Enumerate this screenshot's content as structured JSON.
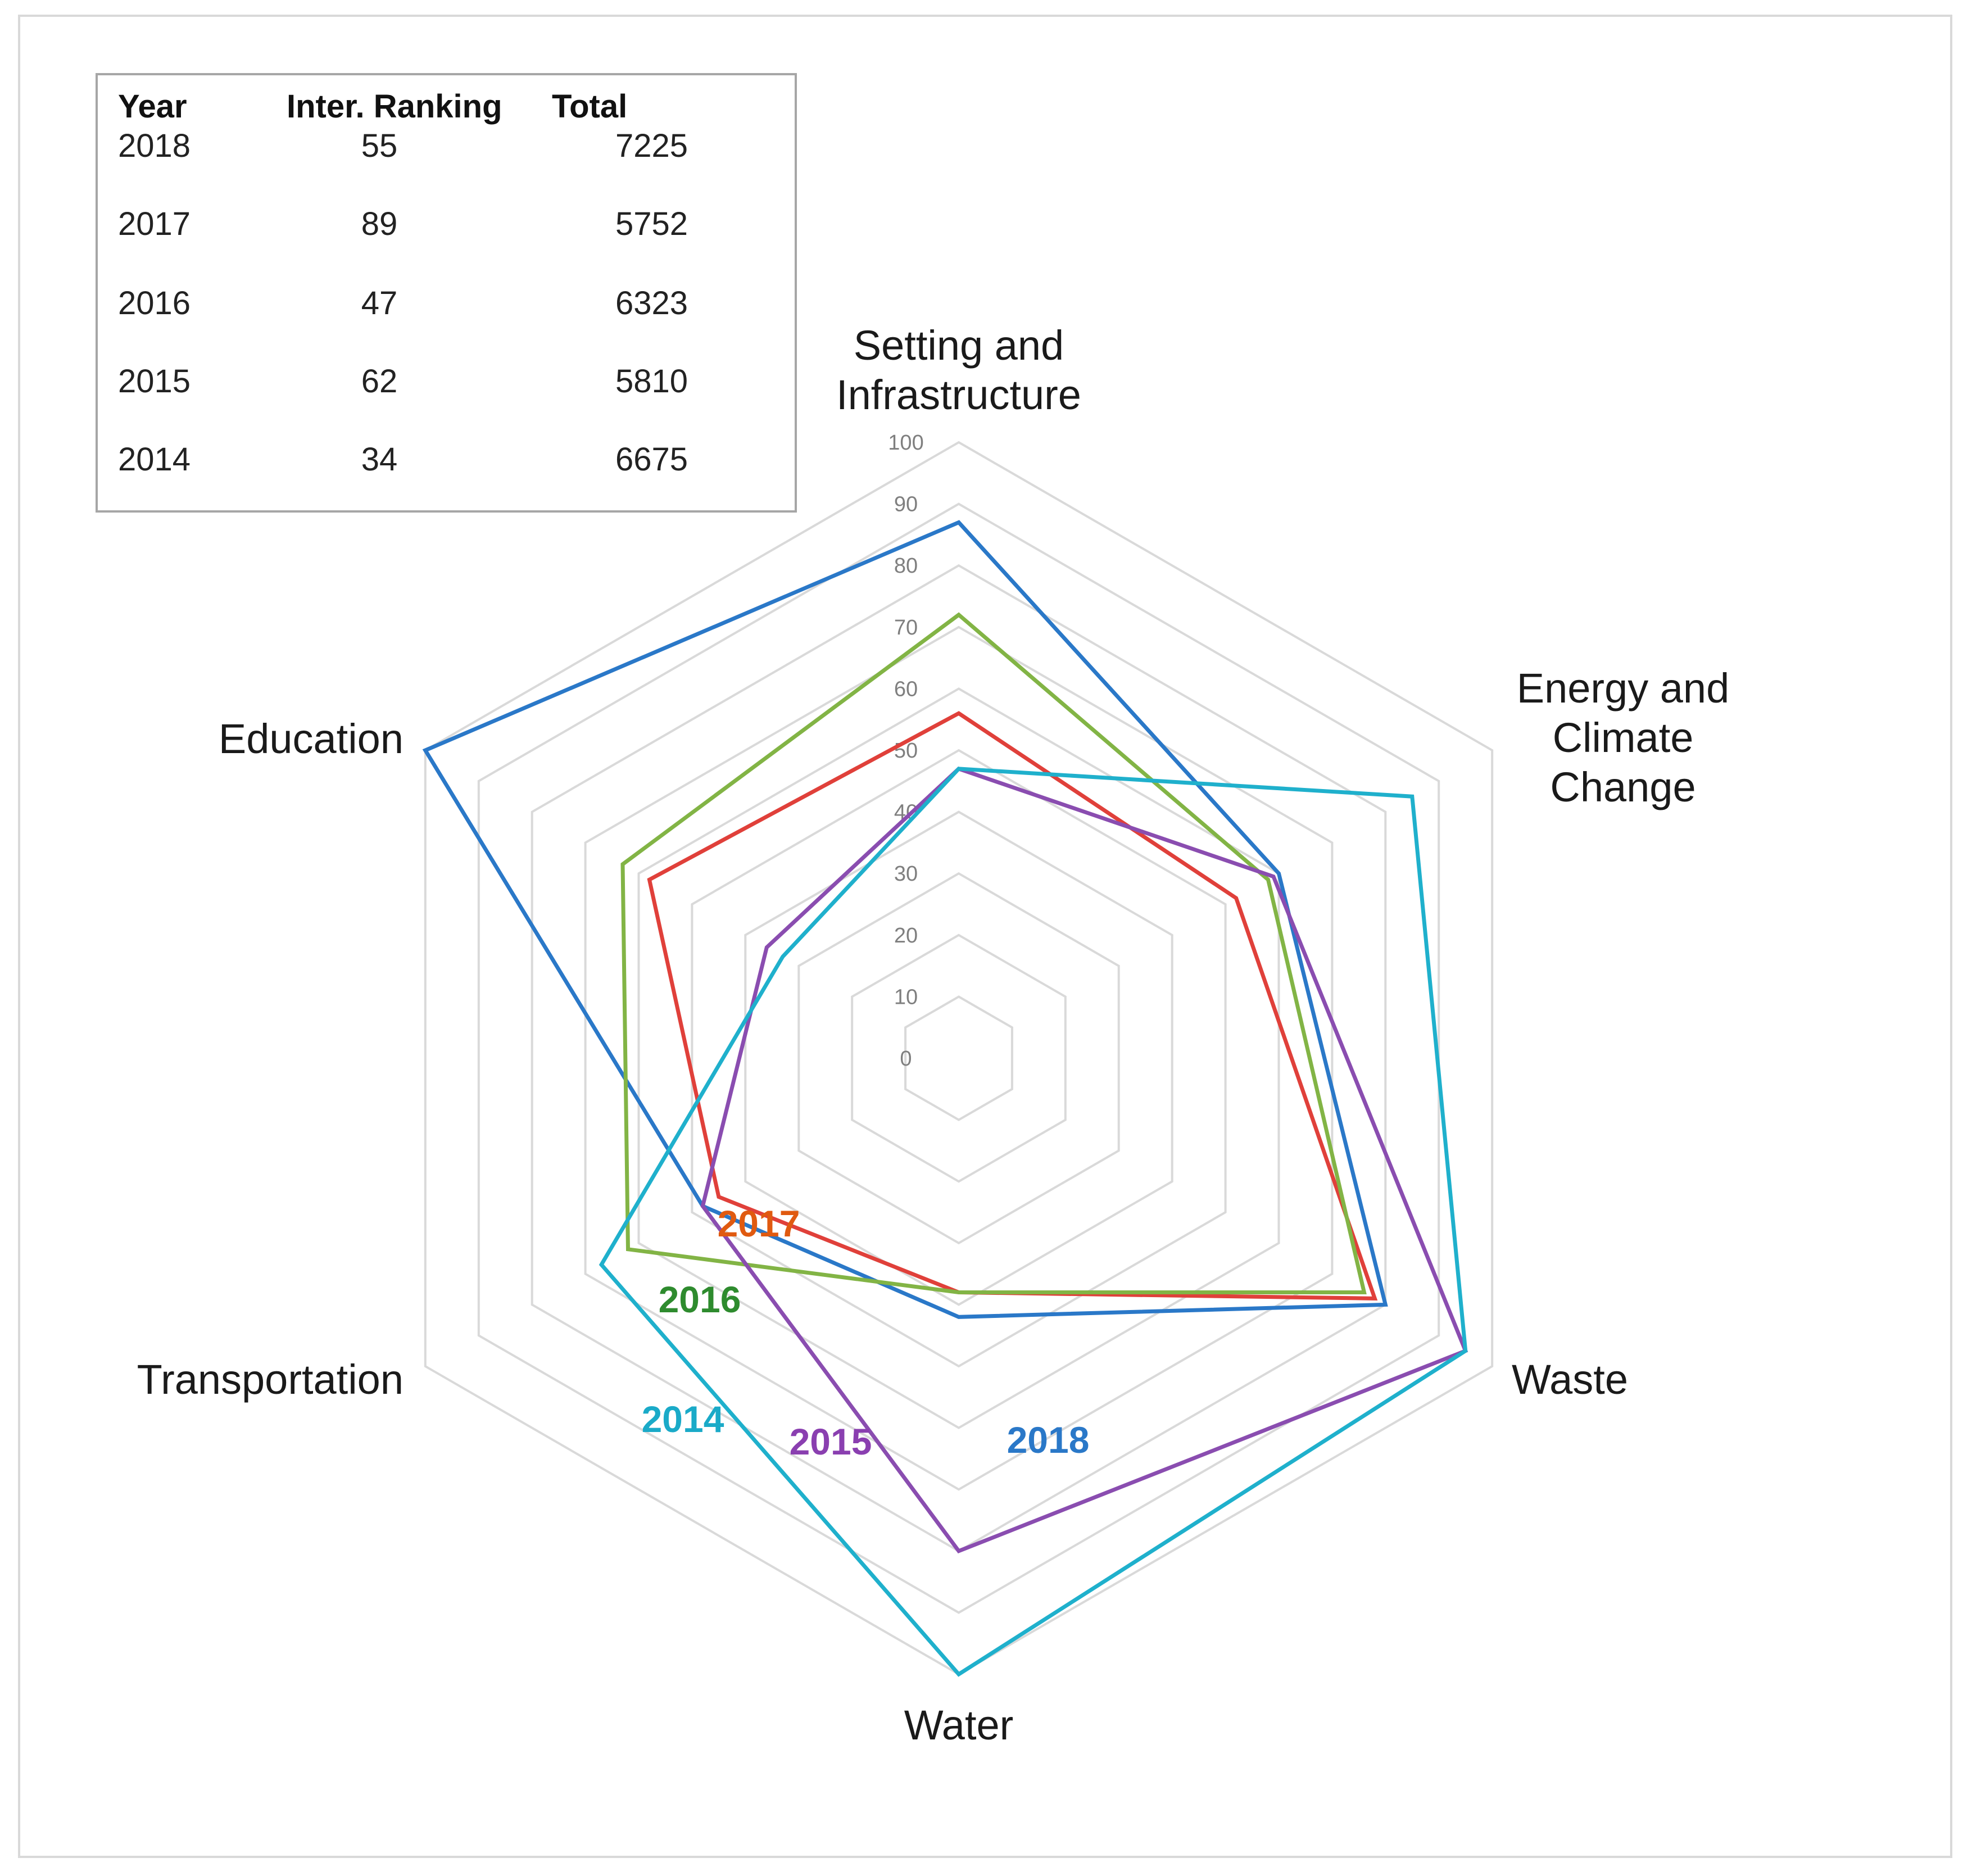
{
  "table": {
    "headers": {
      "year": "Year",
      "rank": "Inter. Ranking",
      "total": "Total"
    },
    "rows": [
      {
        "year": "2018",
        "rank": "55",
        "total": "7225"
      },
      {
        "year": "2017",
        "rank": "89",
        "total": "5752"
      },
      {
        "year": "2016",
        "rank": "47",
        "total": "6323"
      },
      {
        "year": "2015",
        "rank": "62",
        "total": "5810"
      },
      {
        "year": "2014",
        "rank": "34",
        "total": "6675"
      }
    ]
  },
  "chart_data": {
    "type": "radar",
    "title": "",
    "categories": [
      "Setting and Infrastructure",
      "Energy and Climate Change",
      "Waste",
      "Water",
      "Transportation",
      "Education"
    ],
    "category_lines": [
      [
        "Setting and",
        "Infrastructure"
      ],
      [
        "Energy and",
        "Climate",
        "Change"
      ],
      [
        "Waste"
      ],
      [
        "Water"
      ],
      [
        "Transportation"
      ],
      [
        "Education"
      ]
    ],
    "rlim": [
      0,
      100
    ],
    "ticks": [
      0,
      10,
      20,
      30,
      40,
      50,
      60,
      70,
      80,
      90,
      100
    ],
    "grid": true,
    "series": [
      {
        "name": "2018",
        "color": "#2a78c8",
        "values": [
          87,
          60,
          80,
          42,
          48,
          100
        ]
      },
      {
        "name": "2017",
        "color": "#e0403a",
        "values": [
          56,
          52,
          78,
          38,
          45,
          58
        ]
      },
      {
        "name": "2016",
        "color": "#82b445",
        "values": [
          72,
          58,
          76,
          38,
          62,
          63
        ]
      },
      {
        "name": "2015",
        "color": "#8a4db0",
        "values": [
          47,
          59,
          95,
          80,
          48,
          36
        ]
      },
      {
        "name": "2014",
        "color": "#1fb0cc",
        "values": [
          47,
          85,
          95,
          100,
          67,
          33
        ]
      }
    ],
    "series_label_colors": {
      "2018": "#2a78c8",
      "2017": "#e05a10",
      "2016": "#2e8b2e",
      "2015": "#8a3fb0",
      "2014": "#1aaac8"
    }
  }
}
